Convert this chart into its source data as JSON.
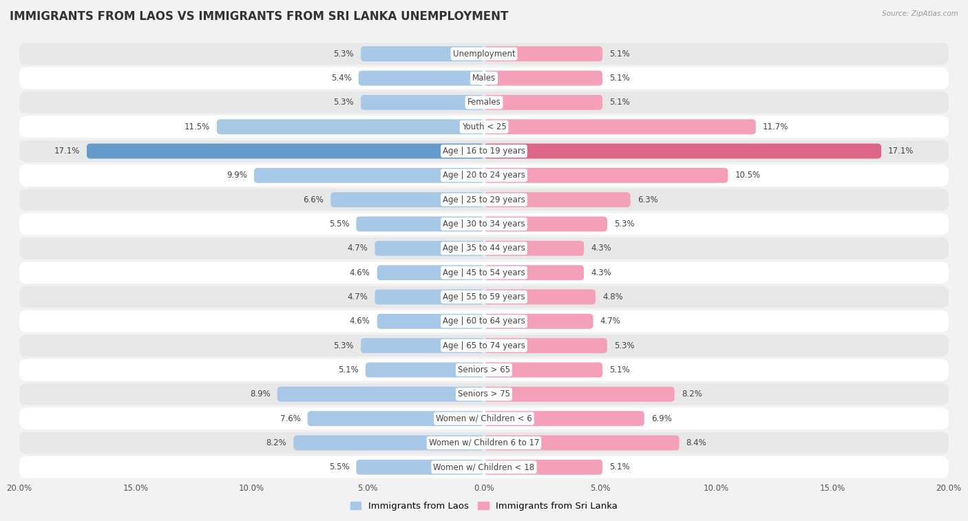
{
  "title": "IMMIGRANTS FROM LAOS VS IMMIGRANTS FROM SRI LANKA UNEMPLOYMENT",
  "source": "Source: ZipAtlas.com",
  "categories": [
    "Unemployment",
    "Males",
    "Females",
    "Youth < 25",
    "Age | 16 to 19 years",
    "Age | 20 to 24 years",
    "Age | 25 to 29 years",
    "Age | 30 to 34 years",
    "Age | 35 to 44 years",
    "Age | 45 to 54 years",
    "Age | 55 to 59 years",
    "Age | 60 to 64 years",
    "Age | 65 to 74 years",
    "Seniors > 65",
    "Seniors > 75",
    "Women w/ Children < 6",
    "Women w/ Children 6 to 17",
    "Women w/ Children < 18"
  ],
  "laos_values": [
    5.3,
    5.4,
    5.3,
    11.5,
    17.1,
    9.9,
    6.6,
    5.5,
    4.7,
    4.6,
    4.7,
    4.6,
    5.3,
    5.1,
    8.9,
    7.6,
    8.2,
    5.5
  ],
  "srilanka_values": [
    5.1,
    5.1,
    5.1,
    11.7,
    17.1,
    10.5,
    6.3,
    5.3,
    4.3,
    4.3,
    4.8,
    4.7,
    5.3,
    5.1,
    8.2,
    6.9,
    8.4,
    5.1
  ],
  "laos_color": "#a8c8e8",
  "srilanka_color": "#f4a0b8",
  "highlight_laos_color": "#6699cc",
  "highlight_srilanka_color": "#dd6688",
  "background_color": "#f2f2f2",
  "row_color_odd": "#ffffff",
  "row_color_even": "#e8e8e8",
  "axis_limit": 20.0,
  "legend_laos": "Immigrants from Laos",
  "legend_srilanka": "Immigrants from Sri Lanka",
  "title_fontsize": 12,
  "label_fontsize": 8.5,
  "value_fontsize": 8.5
}
